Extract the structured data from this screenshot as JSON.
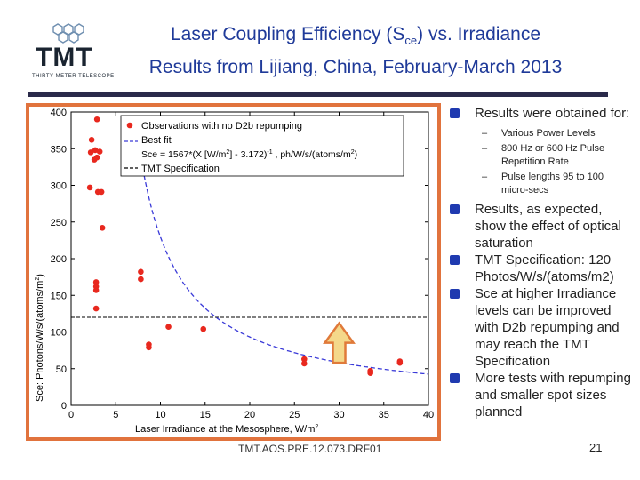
{
  "header": {
    "title_line1_main": "Laser Coupling Efficiency (S",
    "title_line1_sub": "ce",
    "title_line1_end": ") vs. Irradiance",
    "title_line2": "Results from Lijiang, China, February-March 2013",
    "logo_text": "TMT",
    "logo_subtext": "THIRTY METER TELESCOPE"
  },
  "bullets": {
    "b1": "Results were obtained for:",
    "sub1": "Various Power Levels",
    "sub2": "800 Hz or 600 Hz Pulse Repetition Rate",
    "sub3": "Pulse lengths 95 to 100 micro-secs",
    "b2": "Results, as expected, show the effect of optical saturation",
    "b3": "TMT Specification:  120 Photos/W/s/(atoms/m2)",
    "b4": "Sce at higher Irradiance levels can be improved with D2b repumping and  may reach the TMT Specification",
    "b5": "More tests with repumping and smaller spot sizes planned"
  },
  "footer": {
    "doc_id": "TMT.AOS.PRE.12.073.DRF01",
    "page_number": "21"
  },
  "colors": {
    "title": "#1f3a99",
    "points": "#e8281e",
    "fit_line": "#3a3ad8",
    "frame": "#e1733d",
    "arrow_fill": "#f4d88a",
    "arrow_stroke": "#e07a3a"
  },
  "chart_data": {
    "type": "scatter",
    "xlabel_main": "Laser Irradiance at the Mesosphere, W/m",
    "xlabel_sup": "2",
    "ylabel_main": "Sce: Photons/W/s/(atoms/m",
    "ylabel_sup": "2",
    "ylabel_end": ")",
    "xlim": [
      0,
      40
    ],
    "ylim": [
      0,
      400
    ],
    "xticks": [
      0,
      5,
      10,
      15,
      20,
      25,
      30,
      35,
      40
    ],
    "yticks": [
      0,
      50,
      100,
      150,
      200,
      250,
      300,
      350,
      400
    ],
    "grid": false,
    "legend_position": "top-right",
    "legend": {
      "observations": "Observations with no D2b repumping",
      "best_fit": "Best fit",
      "fit_eq_1": "Sce = 1567*(X [W/m",
      "fit_eq_sup1": "2",
      "fit_eq_2": "] - 3.172)",
      "fit_eq_sup2": "-1",
      "fit_eq_3": " , ph/W/s/(atoms/m",
      "fit_eq_sup3": "2",
      "fit_eq_4": ")",
      "spec": "TMT Specification"
    },
    "series": [
      {
        "name": "Observations with no D2b repumping",
        "points": [
          [
            2.9,
            390
          ],
          [
            2.3,
            362
          ],
          [
            2.7,
            348
          ],
          [
            2.2,
            345
          ],
          [
            3.2,
            346
          ],
          [
            2.9,
            338
          ],
          [
            2.6,
            335
          ],
          [
            2.1,
            297
          ],
          [
            3.0,
            291
          ],
          [
            3.4,
            291
          ],
          [
            3.5,
            242
          ],
          [
            2.8,
            168
          ],
          [
            2.8,
            162
          ],
          [
            2.8,
            157
          ],
          [
            2.8,
            132
          ],
          [
            7.8,
            182
          ],
          [
            7.8,
            172
          ],
          [
            8.7,
            83
          ],
          [
            8.7,
            79
          ],
          [
            10.9,
            107
          ],
          [
            14.8,
            104
          ],
          [
            26.1,
            63
          ],
          [
            26.1,
            57
          ],
          [
            33.5,
            47
          ],
          [
            33.5,
            44
          ],
          [
            36.8,
            60
          ],
          [
            36.8,
            58
          ]
        ]
      },
      {
        "name": "Best fit",
        "function": "1567/(x-3.172)",
        "x_start": 2.3,
        "x_end": 39.9
      },
      {
        "name": "TMT Specification",
        "constant": 120
      }
    ],
    "annotation_arrow_x": 30,
    "annotation_arrow_y_range": [
      58,
      112
    ]
  }
}
